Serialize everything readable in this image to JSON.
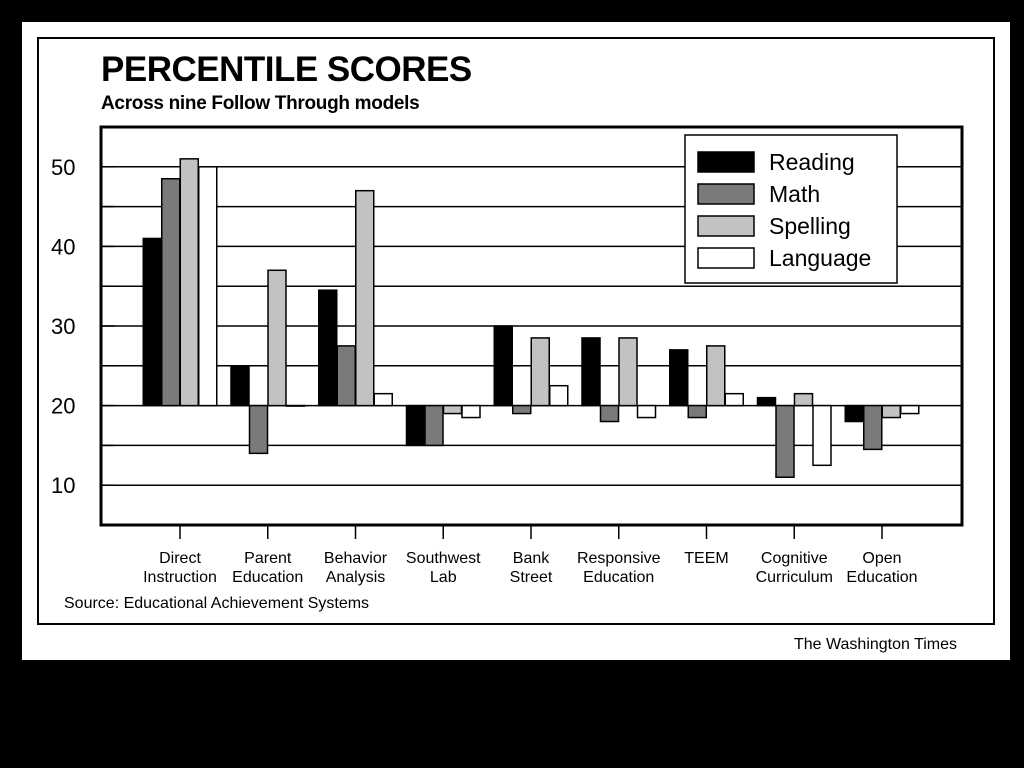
{
  "page": {
    "title": "PERCENTILE SCORES",
    "subtitle": "Across nine Follow Through models",
    "source": "Source: Educational Achievement Systems",
    "credit": "The Washington Times"
  },
  "colors": {
    "background": "#000000",
    "panel": "#ffffff",
    "Reading": "#000000",
    "Math": "#7a7a7a",
    "Spelling": "#c2c2c2",
    "Language": "#ffffff"
  },
  "chart_data": {
    "type": "bar",
    "title": "PERCENTILE SCORES",
    "subtitle": "Across nine Follow Through models",
    "xlabel": "",
    "ylabel": "",
    "ylim": [
      5,
      55
    ],
    "baseline": 20,
    "grid": true,
    "legend_position": "top-right",
    "yticks": [
      10,
      20,
      30,
      40,
      50
    ],
    "categories": [
      [
        "Direct",
        "Instruction"
      ],
      [
        "Parent",
        "Education"
      ],
      [
        "Behavior",
        "Analysis"
      ],
      [
        "Southwest",
        "Lab"
      ],
      [
        "Bank",
        "Street"
      ],
      [
        "Responsive",
        "Education"
      ],
      [
        "TEEM"
      ],
      [
        "Cognitive",
        "Curriculum"
      ],
      [
        "Open",
        "Education"
      ]
    ],
    "series": [
      {
        "name": "Reading",
        "values": [
          41,
          25,
          34.5,
          15,
          30,
          28.5,
          27,
          21,
          18
        ]
      },
      {
        "name": "Math",
        "values": [
          48.5,
          14,
          27.5,
          15,
          19,
          18,
          18.5,
          11,
          14.5
        ]
      },
      {
        "name": "Spelling",
        "values": [
          51,
          37,
          47,
          19,
          28.5,
          28.5,
          27.5,
          21.5,
          18.5
        ]
      },
      {
        "name": "Language",
        "values": [
          50,
          20,
          21.5,
          18.5,
          22.5,
          18.5,
          21.5,
          12.5,
          19
        ]
      }
    ]
  }
}
